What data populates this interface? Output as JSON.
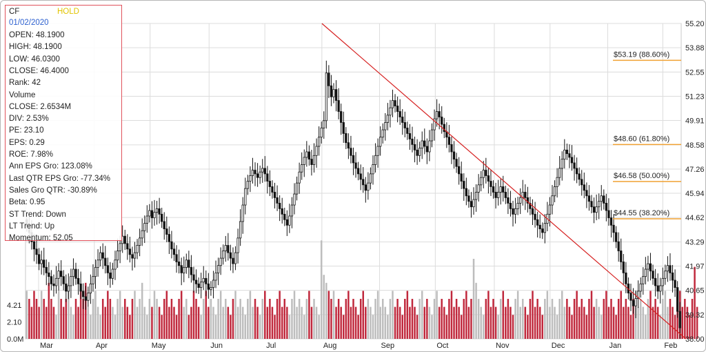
{
  "info": {
    "ticker": "CF",
    "signal": "HOLD",
    "date": "01/02/2020",
    "lines": [
      "OPEN: 48.1900",
      "HIGH: 48.1900",
      "LOW: 46.0300",
      "CLOSE: 46.4000",
      "Rank: 42",
      "Volume",
      "CLOSE: 2.6534M",
      "DIV: 2.53%",
      "PE: 23.10",
      "EPS: 0.29",
      "ROE: 7.98%",
      "Ann EPS Gro: 123.08%",
      "Last QTR EPS Gro: -77.34%",
      "Sales Gro QTR: -30.89%",
      "Beta: 0.95",
      "ST Trend: Down",
      "LT Trend: Up",
      "Momentum: 52.05"
    ]
  },
  "chart_data": {
    "type": "candlestick",
    "x_tick_labels": [
      "Mar",
      "Apr",
      "May",
      "Jun",
      "Jul",
      "Aug",
      "Sep",
      "Oct",
      "Nov",
      "Dec",
      "Jan",
      "Feb"
    ],
    "price_axis": {
      "range": [
        38.0,
        55.2
      ],
      "ticks": [
        "55.20",
        "53.88",
        "52.55",
        "51.23",
        "49.91",
        "48.58",
        "47.26",
        "45.94",
        "44.62",
        "43.29",
        "41.97",
        "40.65",
        "39.32",
        "38.00"
      ]
    },
    "volume_axis": {
      "range": [
        0,
        12.5
      ],
      "ticks": [
        "0.0M",
        "2.10",
        "4.21"
      ]
    },
    "fibonacci_levels": [
      {
        "label": "$53.19 (88.60%)",
        "price": 53.19
      },
      {
        "label": "$48.60 (61.80%)",
        "price": 48.6
      },
      {
        "label": "$46.58 (50.00%)",
        "price": 46.58
      },
      {
        "label": "$44.55 (38.20%)",
        "price": 44.55
      }
    ],
    "trendline": {
      "from": {
        "month_index": 5.0,
        "price": 55.2
      },
      "to": {
        "month_index": 11.4,
        "price": 38.0
      }
    },
    "colors": {
      "fib_line": "#f0a030",
      "trendline": "#d62020",
      "candle": "#111111",
      "volume_up": "#bdbdbd",
      "volume_down": "#c0283c",
      "grid": "#dcdcdc"
    },
    "candles_close": [
      44.2,
      43.8,
      43.3,
      42.9,
      42.6,
      42.1,
      42.3,
      41.9,
      41.6,
      41.4,
      41.0,
      40.9,
      41.3,
      41.7,
      41.4,
      41.0,
      40.6,
      40.9,
      41.4,
      41.8,
      41.3,
      41.0,
      40.6,
      40.3,
      40.1,
      40.5,
      41.0,
      41.4,
      41.9,
      42.3,
      42.7,
      42.4,
      42.0,
      41.6,
      41.3,
      41.8,
      42.3,
      42.8,
      43.2,
      43.6,
      43.2,
      42.9,
      42.6,
      42.4,
      42.7,
      43.1,
      43.5,
      43.9,
      44.3,
      44.7,
      45.0,
      44.6,
      44.9,
      45.1,
      44.8,
      44.4,
      44.0,
      43.7,
      43.3,
      42.9,
      42.6,
      42.2,
      42.0,
      41.6,
      41.9,
      42.3,
      41.9,
      41.5,
      41.2,
      41.0,
      40.8,
      41.1,
      41.3,
      41.0,
      40.7,
      40.8,
      41.2,
      41.6,
      42.0,
      42.4,
      42.8,
      43.1,
      42.7,
      42.4,
      42.1,
      42.7,
      43.5,
      44.4,
      45.3,
      46.2,
      46.6,
      46.9,
      47.2,
      47.0,
      46.8,
      47.1,
      47.3,
      47.0,
      46.6,
      46.3,
      46.0,
      45.7,
      45.4,
      45.1,
      44.8,
      44.5,
      44.2,
      44.7,
      45.3,
      45.9,
      46.5,
      47.1,
      47.5,
      47.9,
      48.2,
      47.8,
      47.5,
      48.0,
      48.5,
      49.0,
      49.5,
      49.9,
      52.5,
      51.8,
      51.2,
      51.6,
      51.0,
      50.4,
      49.8,
      49.2,
      48.7,
      48.4,
      48.0,
      47.6,
      47.3,
      47.0,
      46.7,
      46.4,
      46.1,
      46.5,
      47.0,
      47.5,
      48.0,
      48.5,
      49.0,
      49.4,
      49.8,
      50.2,
      50.6,
      51.0,
      50.7,
      50.4,
      50.1,
      49.8,
      49.5,
      49.2,
      48.9,
      48.6,
      48.3,
      48.0,
      48.4,
      48.8,
      48.5,
      48.2,
      48.8,
      49.4,
      50.0,
      50.4,
      50.1,
      49.7,
      49.3,
      49.0,
      48.6,
      48.2,
      47.8,
      47.4,
      47.0,
      46.6,
      46.2,
      45.8,
      45.5,
      45.2,
      45.6,
      46.0,
      46.4,
      46.8,
      47.2,
      46.9,
      46.6,
      46.3,
      46.0,
      45.7,
      46.0,
      46.3,
      46.0,
      45.7,
      45.4,
      45.1,
      44.8,
      45.1,
      45.4,
      45.7,
      46.0,
      45.7,
      45.4,
      45.1,
      44.8,
      44.5,
      44.2,
      44.0,
      43.8,
      44.3,
      44.8,
      45.3,
      45.8,
      46.3,
      46.8,
      47.3,
      47.8,
      48.3,
      48.1,
      47.9,
      47.6,
      47.3,
      47.0,
      46.7,
      46.4,
      46.1,
      45.8,
      45.5,
      45.2,
      44.9,
      45.2,
      45.5,
      45.8,
      45.4,
      45.0,
      44.6,
      44.2,
      43.8,
      43.3,
      42.8,
      42.2,
      41.6,
      41.0,
      40.5,
      40.1,
      39.8,
      40.2,
      40.6,
      41.0,
      41.4,
      41.8,
      42.1,
      41.7,
      41.3,
      40.9,
      40.6,
      40.9,
      41.3,
      41.7,
      42.0,
      41.6,
      41.2,
      40.8,
      39.5,
      38.6
    ],
    "volume": [
      6,
      5,
      4,
      6,
      5,
      4,
      6,
      5,
      4,
      7,
      5,
      4,
      3,
      6,
      5,
      4,
      5,
      6,
      4,
      3,
      5,
      4,
      6,
      5,
      7,
      4,
      3,
      5,
      6,
      4,
      3,
      5,
      4,
      6,
      5,
      4,
      3,
      5,
      6,
      4,
      5,
      4,
      3,
      5,
      6,
      4,
      5,
      7,
      4,
      3,
      5,
      4,
      6,
      5,
      4,
      3,
      5,
      6,
      4,
      5,
      4,
      3,
      5,
      6,
      4,
      5,
      3,
      4,
      6,
      5,
      4,
      3,
      5,
      6,
      4,
      5,
      4,
      3,
      5,
      6,
      4,
      5,
      4,
      3,
      5,
      6,
      4,
      5,
      4,
      3,
      5,
      6,
      4,
      5,
      4,
      3,
      5,
      6,
      4,
      5,
      4,
      3,
      5,
      6,
      4,
      5,
      4,
      3,
      5,
      6,
      4,
      5,
      4,
      3,
      5,
      6,
      4,
      5,
      4,
      3,
      12.3,
      8,
      7,
      6,
      5,
      6,
      4,
      5,
      4,
      3,
      5,
      6,
      4,
      5,
      4,
      3,
      5,
      6,
      4,
      5,
      4,
      3,
      5,
      6,
      4,
      5,
      4,
      3,
      5,
      6,
      4,
      5,
      4,
      3,
      5,
      6,
      4,
      5,
      4,
      3,
      5,
      6,
      4,
      5,
      4,
      3,
      5,
      6,
      4,
      5,
      4,
      3,
      5,
      6,
      4,
      5,
      4,
      3,
      5,
      6,
      4,
      5,
      10,
      7,
      5,
      4,
      3,
      5,
      6,
      4,
      5,
      4,
      3,
      5,
      6,
      4,
      5,
      4,
      3,
      5,
      6,
      4,
      5,
      4,
      3,
      5,
      6,
      4,
      5,
      4,
      3,
      5,
      6,
      4,
      5,
      4,
      3,
      5,
      6,
      4,
      5,
      4,
      3,
      5,
      6,
      4,
      5,
      4,
      3,
      5,
      6,
      4,
      5,
      4,
      3,
      5,
      6,
      4,
      5,
      4,
      3,
      5,
      6,
      4,
      5,
      4,
      3,
      5,
      6,
      4,
      5,
      4,
      3,
      5,
      6,
      4,
      5,
      4,
      3,
      5,
      6,
      4,
      5,
      4,
      3,
      5,
      6,
      4,
      5,
      4,
      3,
      5,
      9,
      4
    ]
  }
}
